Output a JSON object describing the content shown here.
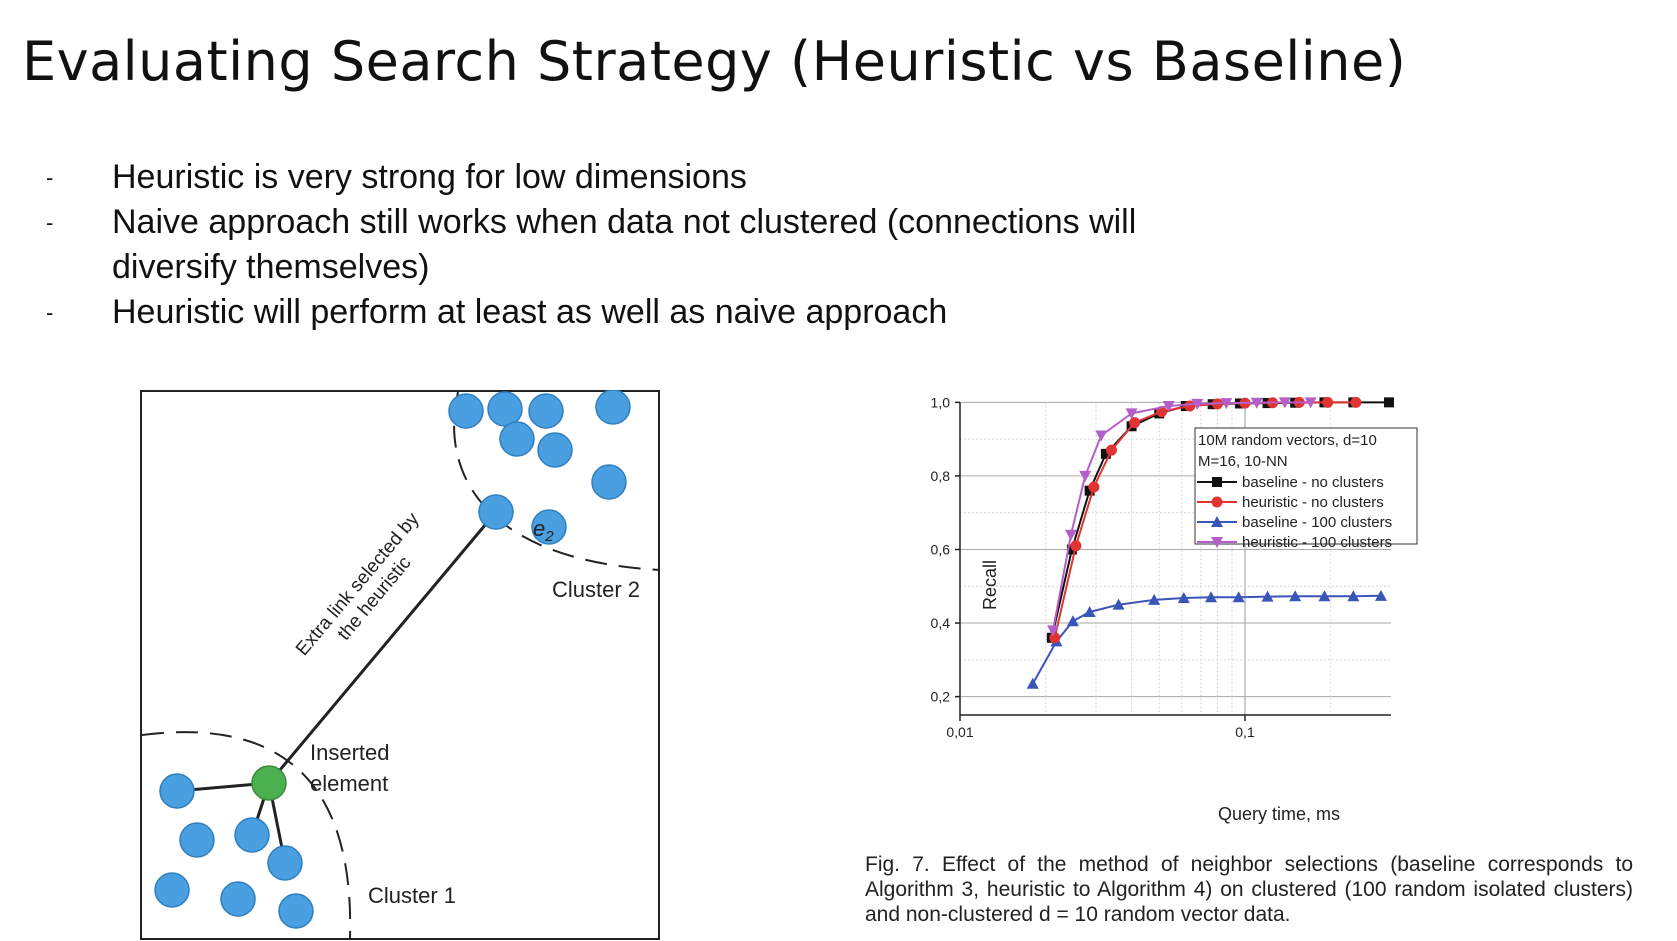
{
  "slide": {
    "title": "Evaluating Search Strategy (Heuristic vs Baseline)",
    "bullets": [
      {
        "marker": "-",
        "text": "Heuristic is very strong for low dimensions"
      },
      {
        "marker": "-",
        "text": "Naive approach still works when data not clustered (connections will diversify themselves)"
      },
      {
        "marker": "-",
        "text": "Heuristic will perform at least as well as naive approach"
      }
    ]
  },
  "diagram": {
    "label_e2": "e",
    "label_e2_sub": "2",
    "cluster2_label": "Cluster 2",
    "cluster1_label": "Cluster 1",
    "inserted_label_line1": "Inserted",
    "inserted_label_line2": "element",
    "link_label_line1": "Extra link selected by",
    "link_label_line2": "the heuristic",
    "node_color": "#4a9fe0",
    "inserted_color": "#4caf50"
  },
  "chart_data": {
    "type": "line",
    "xlabel": "Query time, ms",
    "ylabel": "Recall",
    "x_scale": "log",
    "xlim": [
      0.01,
      0.3
    ],
    "ylim": [
      0.15,
      1.02
    ],
    "x_ticks": [
      0.01,
      0.1
    ],
    "x_tick_labels": [
      "0,01",
      "0,1"
    ],
    "y_ticks": [
      0.2,
      0.4,
      0.6,
      0.8,
      1.0
    ],
    "y_tick_labels": [
      "0,2",
      "0,4",
      "0,6",
      "0,8",
      "1,0"
    ],
    "grid": true,
    "legend_placement": "center-right",
    "legend_title_line1": "10M random vectors, d=10",
    "legend_title_line2": "M=16, 10-NN",
    "series": [
      {
        "name": "baseline - no clusters",
        "color": "#111111",
        "marker": "square",
        "points": [
          [
            0.021,
            0.36
          ],
          [
            0.0247,
            0.6
          ],
          [
            0.0285,
            0.76
          ],
          [
            0.0325,
            0.86
          ],
          [
            0.04,
            0.935
          ],
          [
            0.05,
            0.97
          ],
          [
            0.062,
            0.99
          ],
          [
            0.077,
            0.995
          ],
          [
            0.096,
            0.997
          ],
          [
            0.12,
            0.998
          ],
          [
            0.15,
            0.999
          ],
          [
            0.19,
            1.0
          ],
          [
            0.24,
            1.0
          ],
          [
            0.32,
            1.0
          ]
        ]
      },
      {
        "name": "heuristic - no clusters",
        "color": "#e23333",
        "marker": "circle",
        "points": [
          [
            0.0215,
            0.36
          ],
          [
            0.0255,
            0.61
          ],
          [
            0.0295,
            0.77
          ],
          [
            0.034,
            0.87
          ],
          [
            0.041,
            0.945
          ],
          [
            0.051,
            0.975
          ],
          [
            0.064,
            0.99
          ],
          [
            0.08,
            0.996
          ],
          [
            0.1,
            0.998
          ],
          [
            0.125,
            0.999
          ],
          [
            0.155,
            1.0
          ],
          [
            0.195,
            1.0
          ],
          [
            0.245,
            1.0
          ]
        ]
      },
      {
        "name": "baseline - 100 clusters",
        "color": "#3a55b8",
        "marker": "triangle-up",
        "points": [
          [
            0.018,
            0.235
          ],
          [
            0.0218,
            0.35
          ],
          [
            0.0249,
            0.405
          ],
          [
            0.0285,
            0.43
          ],
          [
            0.036,
            0.45
          ],
          [
            0.048,
            0.463
          ],
          [
            0.061,
            0.468
          ],
          [
            0.076,
            0.47
          ],
          [
            0.095,
            0.47
          ],
          [
            0.12,
            0.472
          ],
          [
            0.15,
            0.473
          ],
          [
            0.19,
            0.473
          ],
          [
            0.24,
            0.473
          ],
          [
            0.3,
            0.474
          ]
        ]
      },
      {
        "name": "heuristic - 100 clusters",
        "color": "#b35fc7",
        "marker": "triangle-down",
        "points": [
          [
            0.0212,
            0.38
          ],
          [
            0.0245,
            0.64
          ],
          [
            0.0275,
            0.8
          ],
          [
            0.0313,
            0.91
          ],
          [
            0.04,
            0.97
          ],
          [
            0.054,
            0.99
          ],
          [
            0.068,
            0.996
          ],
          [
            0.086,
            0.998
          ],
          [
            0.11,
            0.999
          ],
          [
            0.138,
            1.0
          ],
          [
            0.17,
            1.0
          ]
        ]
      }
    ]
  },
  "caption": {
    "text": "Fig. 7. Effect of the method of neighbor selections (baseline corresponds to Algorithm 3, heuristic to Algorithm 4) on clustered (100 random isolated clusters) and non-clustered d = 10 random vector data."
  }
}
